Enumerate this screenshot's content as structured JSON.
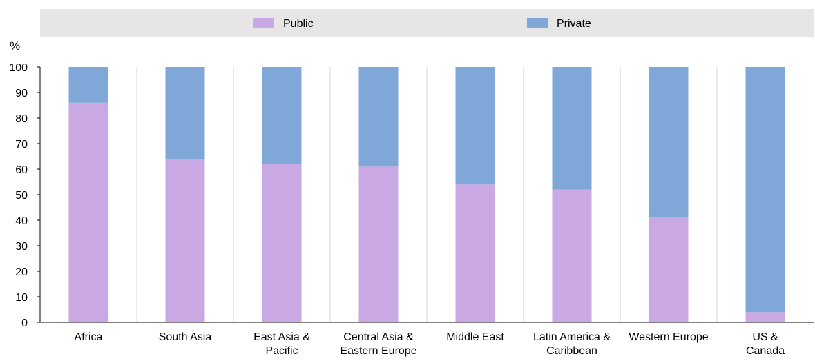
{
  "chart_data": {
    "type": "bar",
    "stacked": true,
    "y_unit": "%",
    "categories": [
      [
        "Africa"
      ],
      [
        "South Asia"
      ],
      [
        "East Asia &",
        "Pacific"
      ],
      [
        "Central Asia &",
        "Eastern Europe"
      ],
      [
        "Middle East"
      ],
      [
        "Latin America &",
        "Caribbean"
      ],
      [
        "Western Europe"
      ],
      [
        "US &",
        "Canada"
      ]
    ],
    "series": [
      {
        "name": "Public",
        "color": "#c9a8e3",
        "values": [
          86,
          64,
          62,
          61,
          54,
          52,
          41,
          4
        ]
      },
      {
        "name": "Private",
        "color": "#7fa7d8",
        "values": [
          14,
          36,
          38,
          39,
          46,
          48,
          59,
          96
        ]
      }
    ],
    "ylim": [
      0,
      100
    ],
    "yticks": [
      0,
      10,
      20,
      30,
      40,
      50,
      60,
      70,
      80,
      90,
      100
    ],
    "grid": "vertical",
    "legend_position": "top"
  }
}
